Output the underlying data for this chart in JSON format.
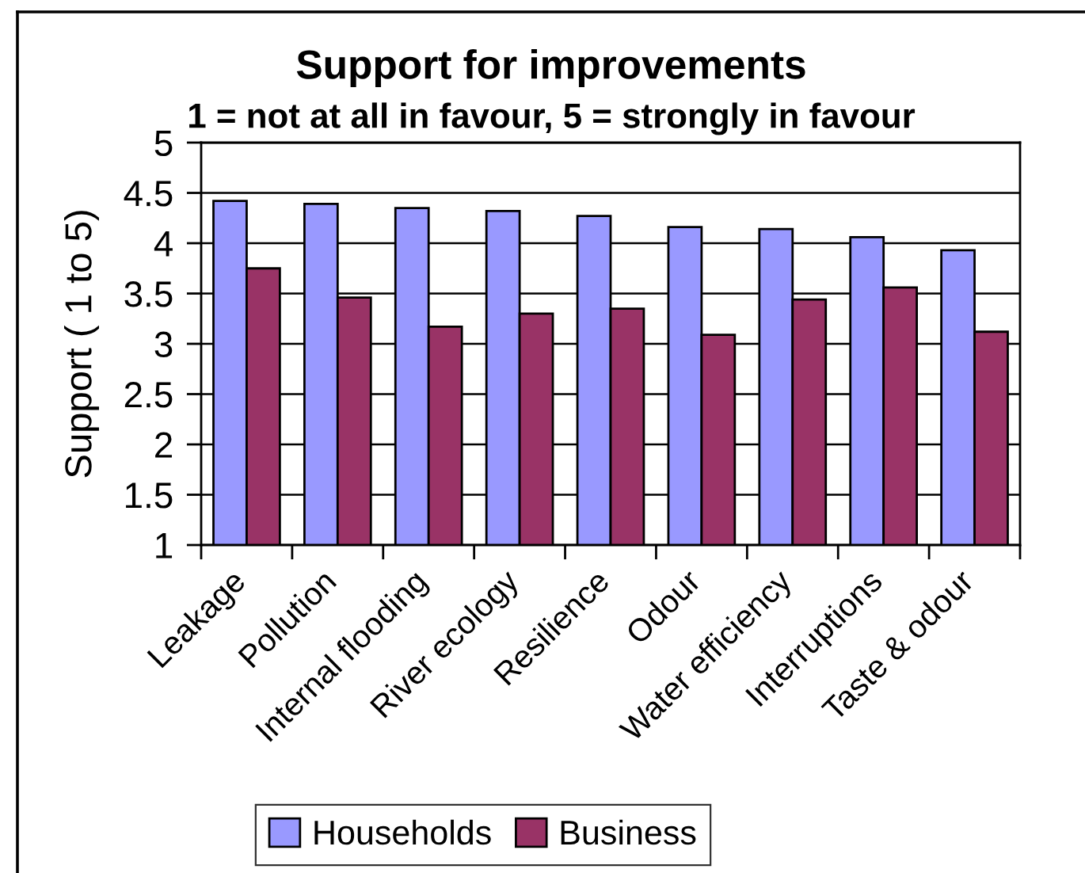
{
  "chart_data": {
    "type": "bar",
    "title": "Support for improvements",
    "subtitle": "1 = not at all in favour, 5 = strongly in favour",
    "ylabel": "Support ( 1 to 5)",
    "categories": [
      "Leakage",
      "Pollution",
      "Internal flooding",
      "River ecology",
      "Resilience",
      "Odour",
      "Water efficiency",
      "Interruptions",
      "Taste & odour"
    ],
    "series": [
      {
        "name": "Households",
        "color": "#9999ff",
        "values": [
          4.42,
          4.39,
          4.35,
          4.32,
          4.27,
          4.16,
          4.14,
          4.06,
          3.93
        ]
      },
      {
        "name": "Business",
        "color": "#993366",
        "values": [
          3.75,
          3.46,
          3.17,
          3.3,
          3.35,
          3.09,
          3.44,
          3.56,
          3.12
        ]
      }
    ],
    "ylim": [
      1,
      5
    ],
    "yticks": [
      1,
      1.5,
      2,
      2.5,
      3,
      3.5,
      4,
      4.5,
      5
    ],
    "grid": "y",
    "legend": "bottom"
  }
}
